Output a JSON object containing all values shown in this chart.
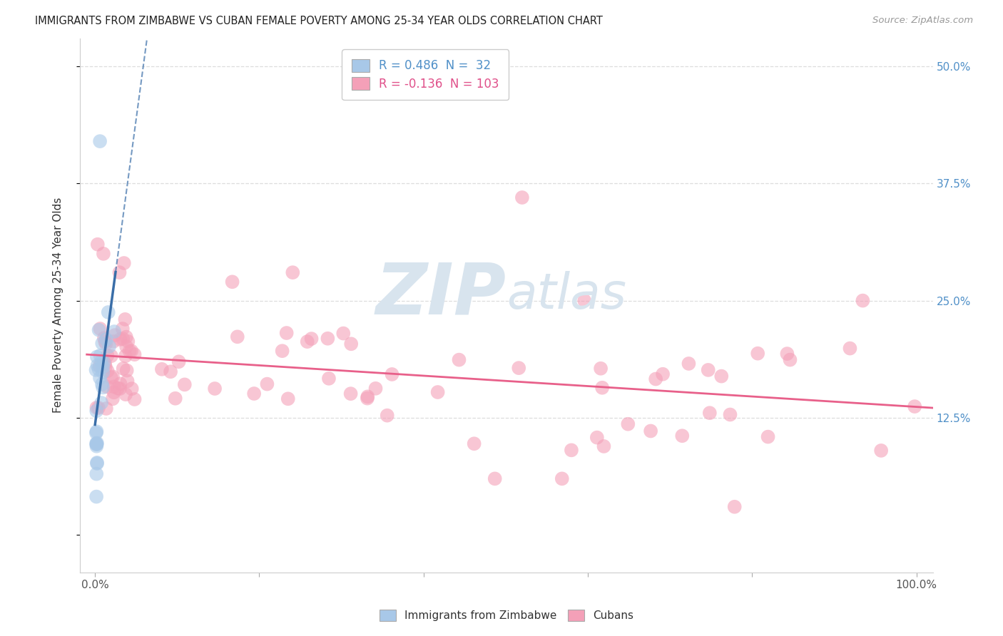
{
  "title": "IMMIGRANTS FROM ZIMBABWE VS CUBAN FEMALE POVERTY AMONG 25-34 YEAR OLDS CORRELATION CHART",
  "source": "Source: ZipAtlas.com",
  "ylabel": "Female Poverty Among 25-34 Year Olds",
  "color_zimbabwe": "#a8c8e8",
  "color_cubans": "#f4a0b8",
  "line_color_zimbabwe": "#3a6ea8",
  "line_color_cubans": "#e8608a",
  "watermark_color": "#d8e4ee",
  "background_color": "#ffffff",
  "grid_color": "#dddddd",
  "r_zim": "0.486",
  "n_zim": "32",
  "r_cub": "-0.136",
  "n_cub": "103",
  "legend_text1": "R = 0.486  N =  32",
  "legend_text2": "R = -0.136  N = 103"
}
